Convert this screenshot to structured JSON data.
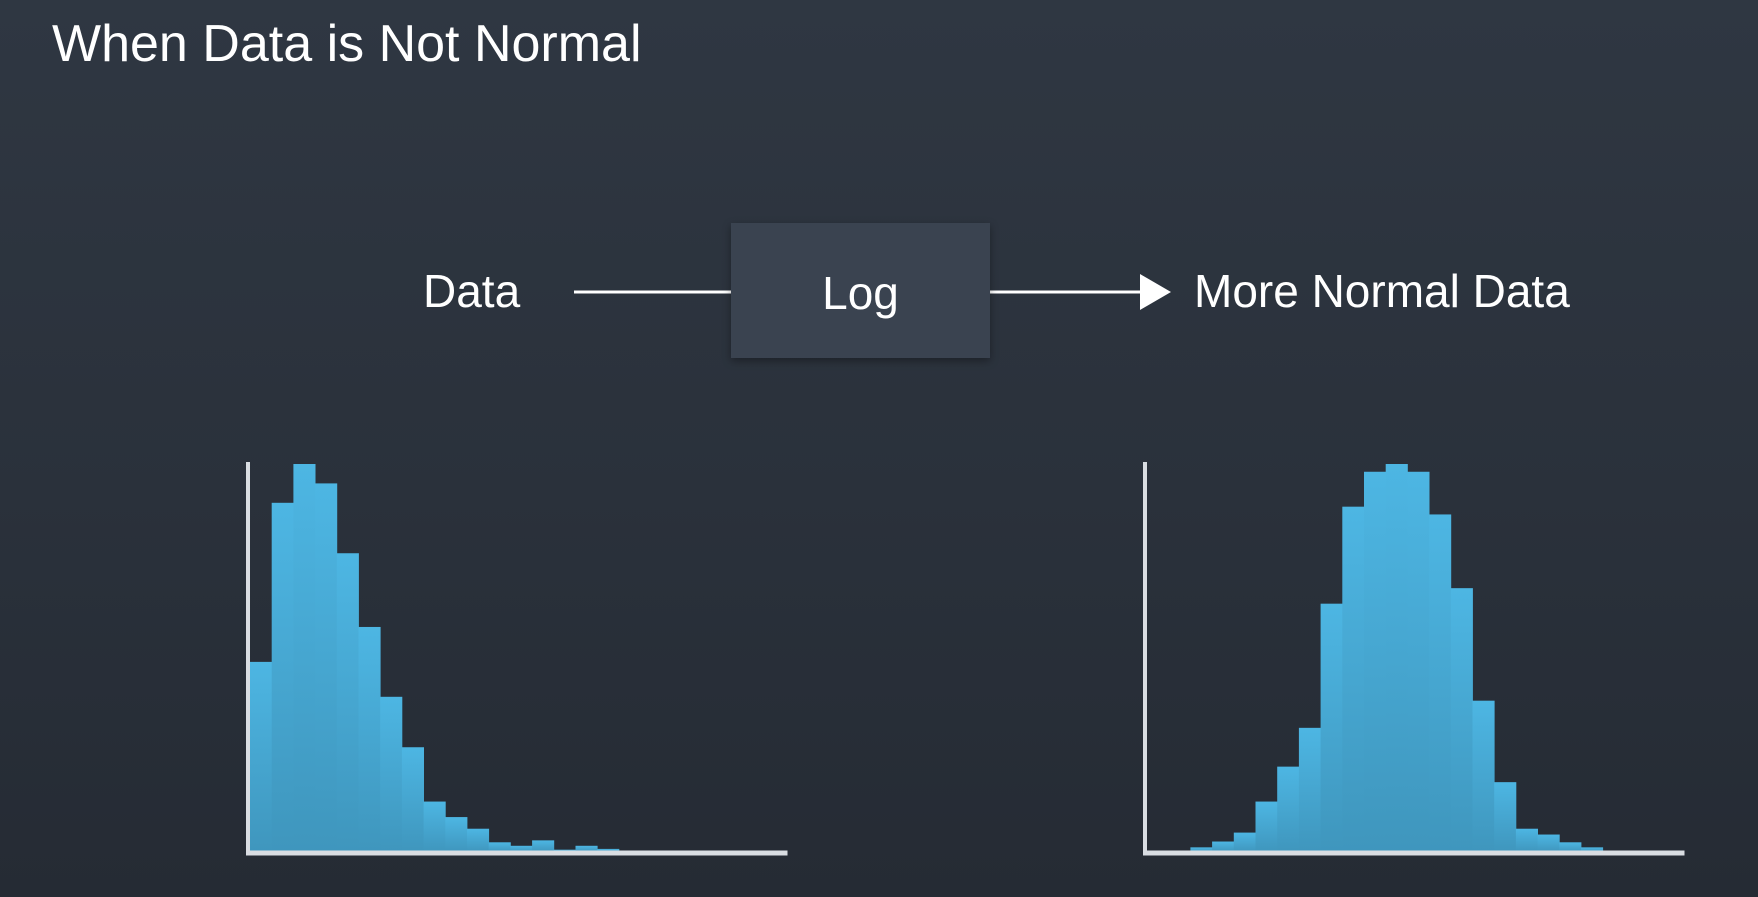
{
  "title": "When Data is Not Normal",
  "flow": {
    "input_label": "Data",
    "transform_label": "Log",
    "output_label": "More Normal Data"
  },
  "colors": {
    "background": "#2b323c",
    "bar_top": "#4db6e3",
    "bar_bottom": "#3f96bd",
    "axis": "#d9dde2"
  },
  "chart_data": [
    {
      "type": "bar",
      "values": [
        0.49,
        0.9,
        1.0,
        0.95,
        0.77,
        0.58,
        0.4,
        0.27,
        0.13,
        0.09,
        0.06,
        0.025,
        0.016,
        0.03,
        0.006,
        0.016,
        0.008,
        0.003,
        0.002,
        0.001,
        0.001,
        0.0,
        0.0,
        0.0,
        0.0
      ],
      "title": "",
      "xlabel": "",
      "ylabel": ""
    },
    {
      "type": "bar",
      "values": [
        0.0,
        0.0,
        0.012,
        0.027,
        0.05,
        0.13,
        0.22,
        0.32,
        0.64,
        0.89,
        0.98,
        1.0,
        0.98,
        0.87,
        0.68,
        0.39,
        0.18,
        0.06,
        0.045,
        0.025,
        0.012,
        0.0,
        0.0,
        0.0,
        0.0
      ],
      "title": "",
      "xlabel": "",
      "ylabel": ""
    }
  ]
}
